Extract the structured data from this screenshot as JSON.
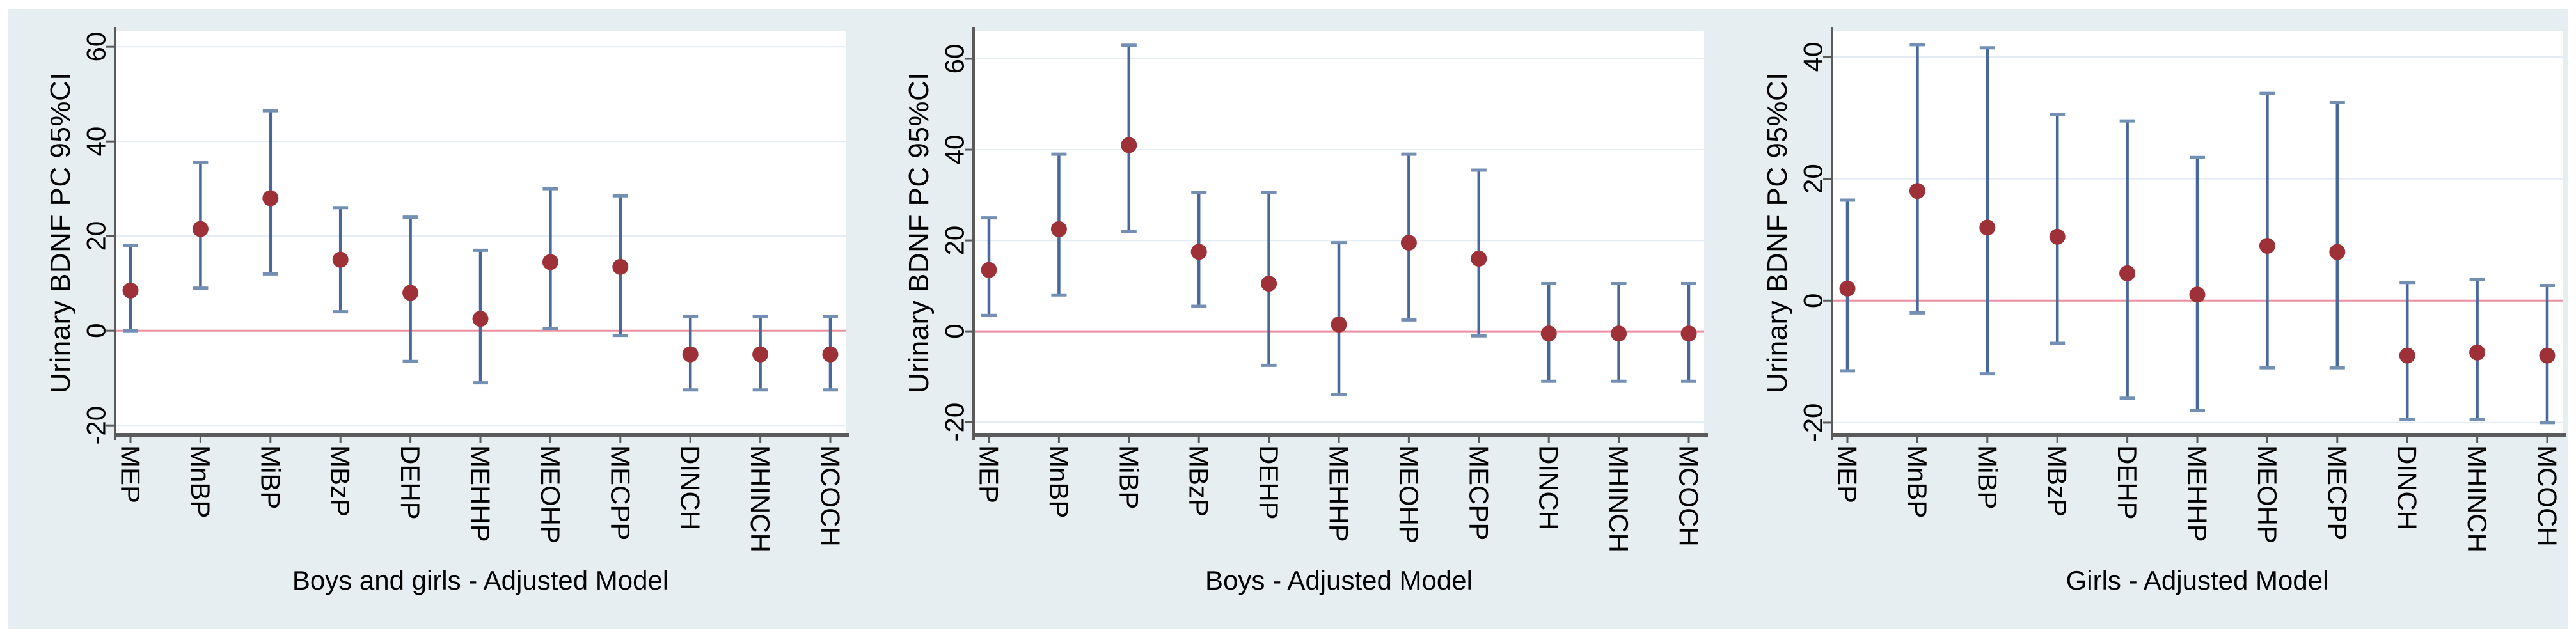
{
  "figure": {
    "colors": {
      "strip_bg": "#e7eef2",
      "plot_bg": "#ffffff",
      "grid": "#e3ebf4",
      "zero_line": "#eb8fa0",
      "ci_line": "#48679a",
      "ci_cap": "#7390b4",
      "marker": "#9e3138",
      "axis": "#5a5a5a",
      "tick": "#5a5a5a",
      "text": "#000000"
    }
  },
  "chart_data": [
    {
      "type": "scatter",
      "variant": "point-estimate-with-95ci-errorbars",
      "title": "Boys and girls - Adjusted Model",
      "ylabel": "Urinary BDNF PC 95%CI",
      "categories": [
        "MEP",
        "MnBP",
        "MiBP",
        "MBzP",
        "DEHP",
        "MEHHP",
        "MEOHP",
        "MECPP",
        "DINCH",
        "MHINCH",
        "MCOCH"
      ],
      "series": [
        {
          "name": "point_estimate",
          "values": [
            8.5,
            21.5,
            28,
            15,
            8,
            2.5,
            14.5,
            13.5,
            -5,
            -5,
            -5
          ]
        },
        {
          "name": "ci_lower",
          "values": [
            0,
            9,
            12,
            4,
            -6.5,
            -11,
            0.5,
            -1,
            -12.5,
            -12.5,
            -12.5
          ]
        },
        {
          "name": "ci_upper",
          "values": [
            18,
            35.5,
            46.5,
            26,
            24,
            17,
            30,
            28.5,
            3,
            3,
            3
          ]
        }
      ],
      "yticks": [
        -20,
        0,
        20,
        40,
        60
      ],
      "ylim": [
        -22,
        63.4
      ],
      "grid": true,
      "zero_line": true,
      "legend": "none"
    },
    {
      "type": "scatter",
      "variant": "point-estimate-with-95ci-errorbars",
      "title": "Boys - Adjusted Model",
      "ylabel": "Urinary BDNF PC 95%CI",
      "categories": [
        "MEP",
        "MnBP",
        "MiBP",
        "MBzP",
        "DEHP",
        "MEHHP",
        "MEOHP",
        "MECPP",
        "DINCH",
        "MHINCH",
        "MCOCH"
      ],
      "series": [
        {
          "name": "point_estimate",
          "values": [
            13.5,
            22.5,
            41,
            17.5,
            10.5,
            1.5,
            19.5,
            16,
            -0.5,
            -0.5,
            -0.5
          ]
        },
        {
          "name": "ci_lower",
          "values": [
            3.5,
            8,
            22,
            5.5,
            -7.5,
            -14,
            2.5,
            -1,
            -11,
            -11,
            -11
          ]
        },
        {
          "name": "ci_upper",
          "values": [
            25,
            39,
            63,
            30.5,
            30.5,
            19.5,
            39,
            35.5,
            10.5,
            10.5,
            10.5
          ]
        }
      ],
      "yticks": [
        -20,
        0,
        20,
        40,
        60
      ],
      "ylim": [
        -22.8,
        66.2
      ],
      "grid": true,
      "zero_line": true,
      "legend": "none"
    },
    {
      "type": "scatter",
      "variant": "point-estimate-with-95ci-errorbars",
      "title": "Girls - Adjusted Model",
      "ylabel": "Urinary BDNF PC 95%CI",
      "categories": [
        "MEP",
        "MnBP",
        "MiBP",
        "MBzP",
        "DEHP",
        "MEHHP",
        "MEOHP",
        "MECPP",
        "DINCH",
        "MHINCH",
        "MCOCH"
      ],
      "series": [
        {
          "name": "point_estimate",
          "values": [
            2,
            18,
            12,
            10.5,
            4.5,
            1,
            9,
            8,
            -9,
            -8.5,
            -9
          ]
        },
        {
          "name": "ci_lower",
          "values": [
            -11.5,
            -2,
            -12,
            -7,
            -16,
            -18,
            -11,
            -11,
            -19.5,
            -19.5,
            -20
          ]
        },
        {
          "name": "ci_upper",
          "values": [
            16.5,
            42,
            41.5,
            30.5,
            29.5,
            23.5,
            34,
            32.5,
            3,
            3.5,
            2.5
          ]
        }
      ],
      "yticks": [
        -20,
        0,
        20,
        40
      ],
      "ylim": [
        -22,
        44.3
      ],
      "grid": true,
      "zero_line": true,
      "legend": "none"
    }
  ]
}
